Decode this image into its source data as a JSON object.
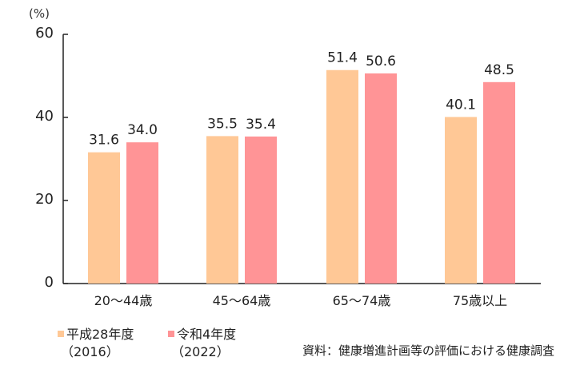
{
  "chart_data": {
    "type": "bar",
    "title": "",
    "unit_label": "(%)",
    "xlabel": "",
    "ylabel": "(%)",
    "ylim": [
      0,
      60
    ],
    "yticks": [
      0,
      20,
      40,
      60
    ],
    "grid": false,
    "legend_position": "bottom-left",
    "categories": [
      "20～44歳",
      "45～64歳",
      "65～74歳",
      "75歳以上"
    ],
    "series": [
      {
        "name": "平成28年度（2016）",
        "name_line1": "平成28年度",
        "name_line2": "（2016）",
        "color": "#FFC896",
        "values": [
          31.6,
          35.5,
          51.4,
          40.1
        ],
        "labels": [
          "31.6",
          "35.5",
          "51.4",
          "40.1"
        ]
      },
      {
        "name": "令和4年度（2022）",
        "name_line1": "令和4年度",
        "name_line2": "（2022）",
        "color": "#FF9496",
        "values": [
          34.0,
          35.4,
          50.6,
          48.5
        ],
        "labels": [
          "34.0",
          "35.4",
          "50.6",
          "48.5"
        ]
      }
    ],
    "source": "資料：健康増進計画等の評価における健康調査"
  }
}
